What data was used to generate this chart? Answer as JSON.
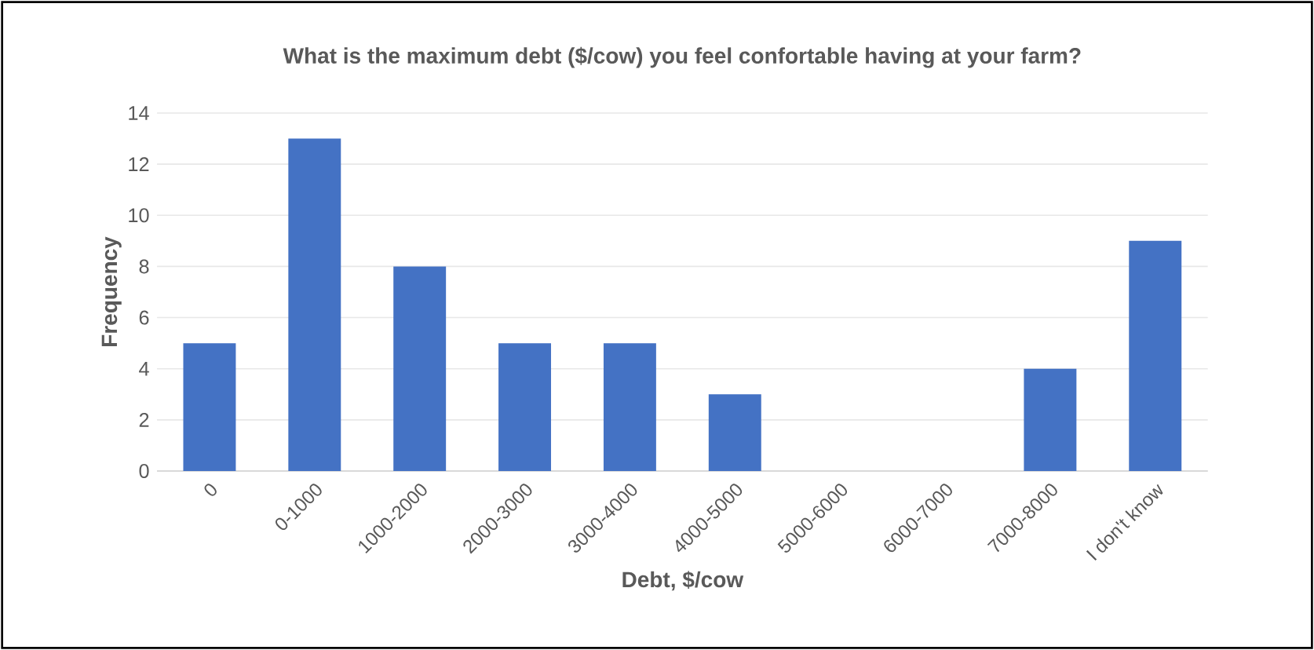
{
  "chart_data": {
    "type": "bar",
    "title": "What is the maximum debt ($/cow) you feel confortable having at your farm?",
    "xlabel": "Debt, $/cow",
    "ylabel": "Frequency",
    "categories": [
      "0",
      "0-1000",
      "1000-2000",
      "2000-3000",
      "3000-4000",
      "4000-5000",
      "5000-6000",
      "6000-7000",
      "7000-8000",
      "I don't know"
    ],
    "values": [
      5,
      13,
      8,
      5,
      5,
      3,
      0,
      0,
      4,
      9
    ],
    "color": "#4472c4",
    "ylim": [
      0,
      14
    ],
    "yticks": [
      0,
      2,
      4,
      6,
      8,
      10,
      12,
      14
    ],
    "grid": "y"
  }
}
